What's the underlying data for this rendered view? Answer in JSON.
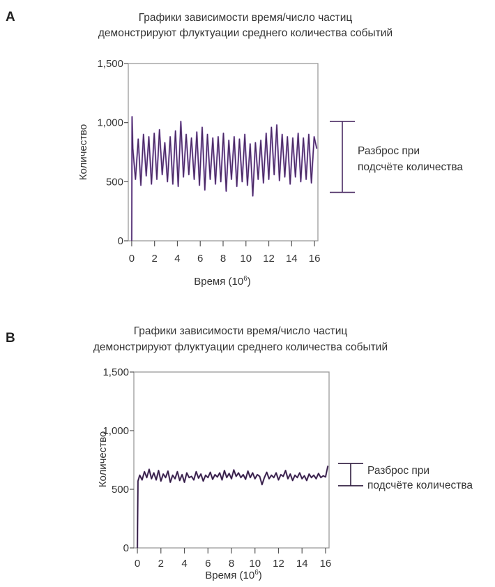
{
  "chart_data": [
    {
      "panel": "A",
      "type": "line",
      "title_lines": [
        "Графики зависимости время/число частиц",
        "демонстрируют флуктуации среднего количества событий"
      ],
      "xlabel": "Время (10",
      "xlabel_exp": "6",
      "xlabel_tail": ")",
      "ylabel": "Количество",
      "xlim": [
        -0.3,
        16.3
      ],
      "ylim": [
        0,
        1500
      ],
      "x_ticks": [
        0,
        2,
        4,
        6,
        8,
        10,
        12,
        14,
        16
      ],
      "x_tick_labels": [
        "0",
        "2",
        "4",
        "6",
        "8",
        "10",
        "12",
        "14",
        "16"
      ],
      "y_ticks": [
        0,
        500,
        1000,
        1500
      ],
      "y_tick_labels": [
        "0",
        "500",
        "1,000",
        "1,500"
      ],
      "grid": false,
      "line_color": "#4a2a63",
      "line_color_2": "#9a72c8",
      "series": [
        {
          "x": [
            0,
            0.03,
            0.1,
            0.33,
            0.57,
            0.8,
            1.03,
            1.27,
            1.5,
            1.73,
            1.97,
            2.2,
            2.43,
            2.67,
            2.9,
            3.13,
            3.37,
            3.6,
            3.83,
            4.07,
            4.3,
            4.53,
            4.77,
            5.0,
            5.23,
            5.47,
            5.7,
            5.93,
            6.17,
            6.4,
            6.63,
            6.87,
            7.1,
            7.33,
            7.57,
            7.8,
            8.03,
            8.27,
            8.5,
            8.73,
            8.97,
            9.2,
            9.43,
            9.67,
            9.9,
            10.13,
            10.37,
            10.6,
            10.83,
            11.07,
            11.3,
            11.53,
            11.77,
            12.0,
            12.23,
            12.47,
            12.7,
            12.93,
            13.17,
            13.4,
            13.63,
            13.87,
            14.1,
            14.33,
            14.57,
            14.8,
            15.03,
            15.27,
            15.5,
            15.73,
            15.97,
            16.2
          ],
          "y": [
            0,
            1050,
            780,
            520,
            860,
            470,
            900,
            550,
            880,
            480,
            910,
            520,
            940,
            560,
            830,
            500,
            880,
            480,
            930,
            460,
            1010,
            540,
            900,
            560,
            870,
            520,
            920,
            470,
            960,
            430,
            900,
            520,
            870,
            480,
            880,
            500,
            910,
            420,
            850,
            520,
            880,
            460,
            860,
            500,
            900,
            470,
            820,
            380,
            830,
            520,
            850,
            490,
            910,
            520,
            960,
            560,
            980,
            510,
            900,
            540,
            880,
            480,
            870,
            540,
            910,
            500,
            870,
            520,
            900,
            490,
            880,
            780
          ]
        }
      ],
      "annotation": {
        "lines": [
          "Разброс при",
          "подсчёте количества"
        ],
        "range": [
          410,
          1010
        ]
      }
    },
    {
      "panel": "B",
      "type": "line",
      "title_lines": [
        "Графики зависимости время/число частиц",
        "демонстрируют флуктуации среднего количества событий"
      ],
      "xlabel": "Время (10",
      "xlabel_exp": "6",
      "xlabel_tail": ")",
      "ylabel": "Количество",
      "xlim": [
        -0.3,
        16.3
      ],
      "ylim": [
        0,
        1500
      ],
      "x_ticks": [
        0,
        2,
        4,
        6,
        8,
        10,
        12,
        14,
        16
      ],
      "x_tick_labels": [
        "0",
        "2",
        "4",
        "6",
        "8",
        "10",
        "12",
        "14",
        "16"
      ],
      "y_ticks": [
        0,
        500,
        1000,
        1500
      ],
      "y_tick_labels": [
        "0",
        "500",
        "1,000",
        "1,500"
      ],
      "grid": false,
      "line_color": "#2e1b3e",
      "line_color_2": "#6d4a8a",
      "series": [
        {
          "x": [
            0,
            0.05,
            0.2,
            0.4,
            0.6,
            0.8,
            1.0,
            1.2,
            1.4,
            1.6,
            1.8,
            2.0,
            2.2,
            2.4,
            2.6,
            2.8,
            3.0,
            3.2,
            3.4,
            3.6,
            3.8,
            4.0,
            4.2,
            4.4,
            4.6,
            4.8,
            5.0,
            5.2,
            5.4,
            5.6,
            5.8,
            6.0,
            6.2,
            6.4,
            6.6,
            6.8,
            7.0,
            7.2,
            7.4,
            7.6,
            7.8,
            8.0,
            8.2,
            8.4,
            8.6,
            8.8,
            9.0,
            9.2,
            9.4,
            9.6,
            9.8,
            10.0,
            10.2,
            10.4,
            10.6,
            10.8,
            11.0,
            11.2,
            11.4,
            11.6,
            11.8,
            12.0,
            12.2,
            12.4,
            12.6,
            12.8,
            13.0,
            13.2,
            13.4,
            13.6,
            13.8,
            14.0,
            14.2,
            14.4,
            14.6,
            14.8,
            15.0,
            15.2,
            15.4,
            15.6,
            15.8,
            16.0,
            16.2
          ],
          "y": [
            0,
            570,
            620,
            580,
            650,
            600,
            670,
            590,
            640,
            580,
            660,
            570,
            630,
            600,
            655,
            560,
            620,
            590,
            650,
            575,
            625,
            560,
            640,
            600,
            610,
            580,
            650,
            595,
            630,
            570,
            620,
            600,
            645,
            585,
            625,
            605,
            640,
            580,
            660,
            600,
            635,
            590,
            665,
            610,
            640,
            600,
            625,
            585,
            655,
            600,
            640,
            590,
            625,
            610,
            540,
            600,
            645,
            590,
            620,
            600,
            640,
            580,
            625,
            610,
            660,
            590,
            630,
            575,
            620,
            600,
            640,
            590,
            615,
            575,
            630,
            600,
            620,
            590,
            635,
            600,
            615,
            605,
            700
          ]
        }
      ],
      "annotation": {
        "lines": [
          "Разброс при",
          "подсчёте количества"
        ],
        "range": [
          530,
          720
        ]
      }
    }
  ]
}
